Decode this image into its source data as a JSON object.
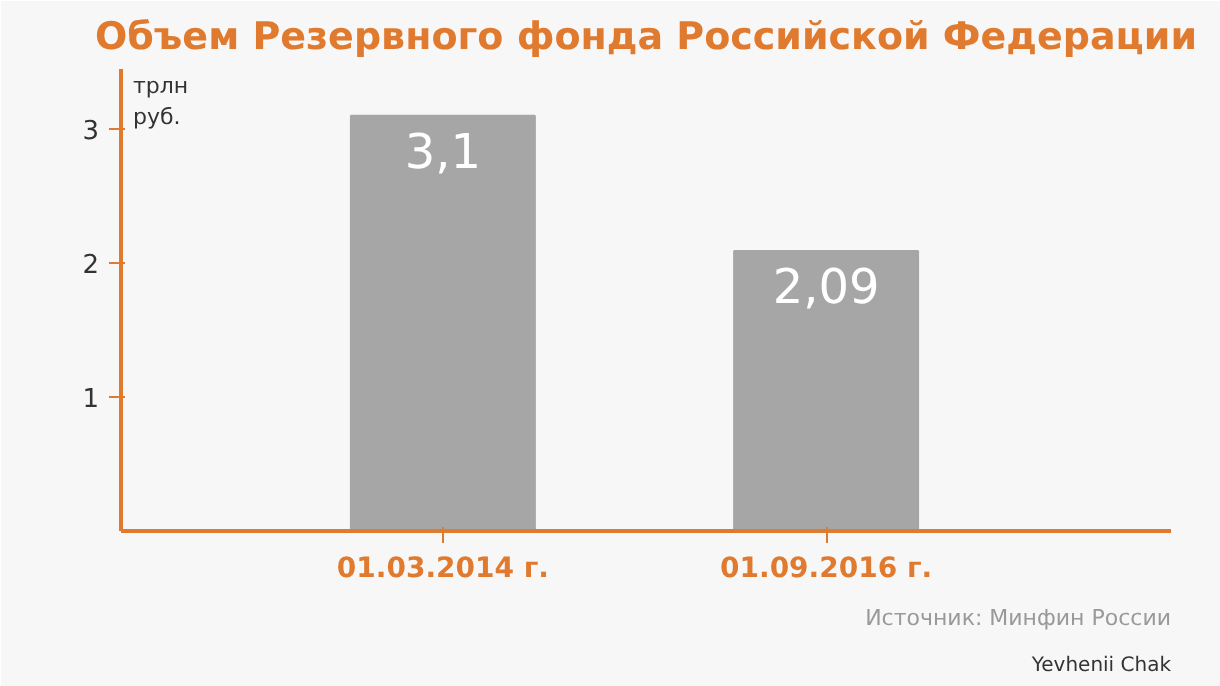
{
  "chart_data": {
    "type": "bar",
    "title": "Объем Резервного фонда Российской Федерации",
    "ylabel": "трлн руб.",
    "categories": [
      "01.03.2014 г.",
      "01.09.2016 г."
    ],
    "values": [
      3.1,
      2.09
    ],
    "value_labels": [
      "3,1",
      "2,09"
    ],
    "color": "#a6a6a6",
    "ylim": [
      0,
      3.45
    ],
    "yticks": [
      1,
      2,
      3
    ],
    "grid": false,
    "annotations": [
      "Источник: Минфин России",
      "Yevhenii Chak"
    ]
  }
}
